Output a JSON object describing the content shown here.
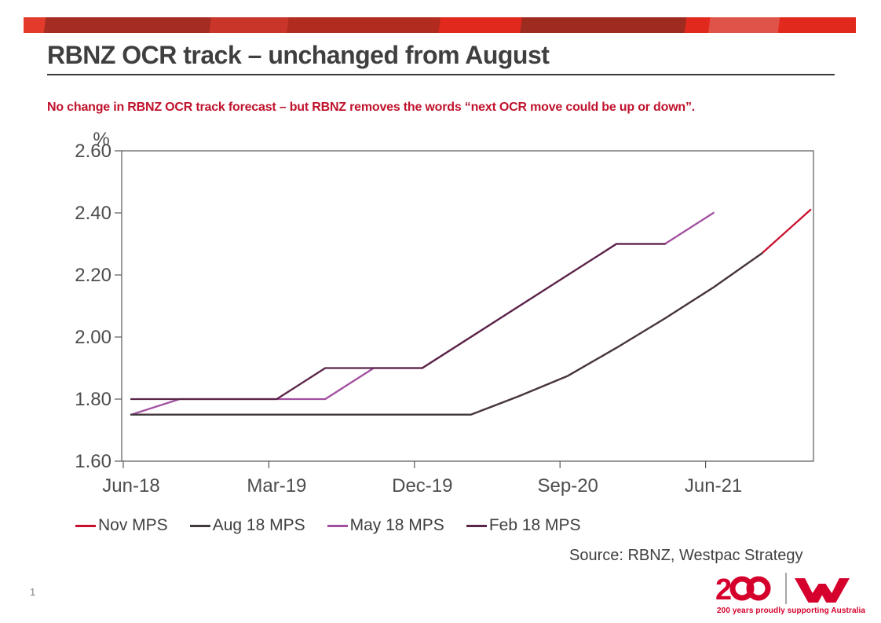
{
  "slide": {
    "title": "RBNZ OCR track – unchanged from August",
    "subtitle": "No change in RBNZ OCR track forecast – but RBNZ removes the words “next OCR move could be up or down”.",
    "source": "Source: RBNZ, Westpac Strategy",
    "page_number": "1",
    "footer_tagline": "200 years proudly supporting Australia",
    "brand_color": "#d5002b"
  },
  "banner": {
    "segments": [
      {
        "color": "#e23a2b",
        "from": 0,
        "to": 28
      },
      {
        "color": "#a42c22",
        "from": 28,
        "to": 237
      },
      {
        "color": "#c93528",
        "from": 237,
        "to": 335
      },
      {
        "color": "#b22b1f",
        "from": 335,
        "to": 527
      },
      {
        "color": "#e2291d",
        "from": 527,
        "to": 630
      },
      {
        "color": "#9e2b20",
        "from": 630,
        "to": 838
      },
      {
        "color": "#e2291d",
        "from": 838,
        "to": 868
      },
      {
        "color": "#e05348",
        "from": 868,
        "to": 956
      },
      {
        "color": "#e2291d",
        "from": 956,
        "to": 1060
      }
    ]
  },
  "chart_data": {
    "type": "line",
    "title": "",
    "xlabel": "",
    "ylabel": "%",
    "ylim": [
      1.6,
      2.6
    ],
    "yticks": [
      "2.60",
      "2.40",
      "2.20",
      "2.00",
      "1.80",
      "1.60"
    ],
    "xticks": [
      "Jun-18",
      "Mar-19",
      "Dec-19",
      "Sep-20",
      "Jun-21"
    ],
    "xtick_months": [
      0,
      9,
      18,
      27,
      36
    ],
    "x_unit": "months after Jun-18 (quarterly points)",
    "grid": false,
    "legend_position": "bottom",
    "axis_color": "#595959",
    "tick_color": "#4d4d4d",
    "series": [
      {
        "name": "Nov MPS",
        "color": "#c8102e",
        "points": [
          [
            0,
            1.75
          ],
          [
            21,
            1.75
          ],
          [
            24,
            1.81
          ],
          [
            27,
            1.875
          ],
          [
            30,
            1.965
          ],
          [
            33,
            2.06
          ],
          [
            36,
            2.16
          ],
          [
            39,
            2.27
          ],
          [
            42,
            2.41
          ]
        ]
      },
      {
        "name": "Aug 18 MPS",
        "color": "#403a3e",
        "points": [
          [
            0,
            1.75
          ],
          [
            21,
            1.75
          ],
          [
            24,
            1.81
          ],
          [
            27,
            1.875
          ],
          [
            30,
            1.965
          ],
          [
            33,
            2.06
          ],
          [
            36,
            2.16
          ],
          [
            39,
            2.27
          ]
        ]
      },
      {
        "name": "May 18 MPS",
        "color": "#a24fa0",
        "points": [
          [
            0,
            1.75
          ],
          [
            3,
            1.8
          ],
          [
            12,
            1.8
          ],
          [
            15,
            1.9
          ],
          [
            18,
            1.9
          ],
          [
            30,
            2.3
          ],
          [
            33,
            2.3
          ],
          [
            36,
            2.4
          ]
        ]
      },
      {
        "name": "Feb 18 MPS",
        "color": "#5b2548",
        "points": [
          [
            0,
            1.8
          ],
          [
            9,
            1.8
          ],
          [
            12,
            1.9
          ],
          [
            18,
            1.9
          ],
          [
            30,
            2.3
          ],
          [
            33,
            2.3
          ]
        ]
      }
    ]
  }
}
